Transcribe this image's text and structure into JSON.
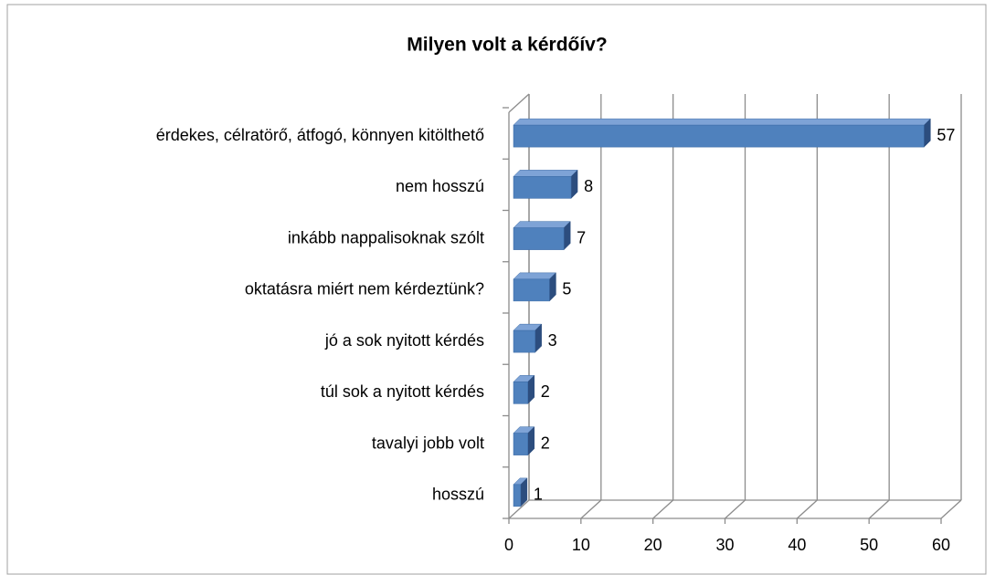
{
  "chart_data": {
    "type": "bar",
    "orientation": "horizontal",
    "three_d": true,
    "title": "Milyen volt a kérdőív?",
    "categories": [
      "érdekes, célratörő, átfogó, könnyen kitölthető",
      "nem hosszú",
      "inkább nappalisoknak szólt",
      "oktatásra miért nem kérdeztünk?",
      "jó a sok nyitott kérdés",
      "túl sok a nyitott kérdés",
      "tavalyi jobb volt",
      "hosszú"
    ],
    "values": [
      57,
      8,
      7,
      5,
      3,
      2,
      2,
      1
    ],
    "color": "#4f81bd",
    "xlim": [
      0,
      60
    ],
    "xticks": [
      0,
      10,
      20,
      30,
      40,
      50,
      60
    ],
    "grid": true
  }
}
